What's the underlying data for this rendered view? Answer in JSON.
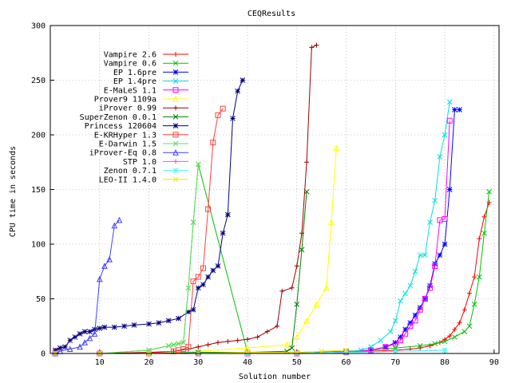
{
  "chart_data": {
    "type": "line",
    "title": "CEQResults",
    "xlabel": "Solution number",
    "ylabel": "CPU time in seconds",
    "xlim": [
      0,
      91
    ],
    "ylim": [
      0,
      300
    ],
    "xticks": [
      "10",
      "20",
      "30",
      "40",
      "50",
      "60",
      "70",
      "80",
      "90"
    ],
    "yticks": [
      "0",
      "50",
      "100",
      "150",
      "200",
      "250",
      "300"
    ],
    "grid": true,
    "legend_position": "top-left",
    "series": [
      {
        "name": "Vampire 2.6",
        "color": "#ff0000",
        "marker": "plus",
        "x": [
          1,
          10,
          20,
          30,
          40,
          50,
          60,
          65,
          70,
          73,
          75,
          77,
          79,
          80,
          81,
          82,
          83,
          84,
          85,
          86,
          87,
          88,
          89
        ],
        "y": [
          0,
          0,
          0,
          0,
          0,
          0,
          1,
          2,
          3,
          4,
          5,
          7,
          10,
          13,
          16,
          22,
          28,
          40,
          55,
          70,
          105,
          125,
          138
        ]
      },
      {
        "name": "Vampire 0.6",
        "color": "#00c000",
        "marker": "x",
        "x": [
          1,
          10,
          20,
          24,
          25,
          26,
          27,
          28,
          29,
          30,
          40,
          50,
          60,
          65,
          70,
          75,
          78,
          80,
          82,
          84,
          85,
          86,
          87,
          88,
          89
        ],
        "y": [
          0,
          0,
          3,
          7,
          8,
          9,
          10,
          60,
          120,
          173,
          1,
          1,
          2,
          3,
          5,
          7,
          9,
          11,
          15,
          20,
          25,
          45,
          70,
          110,
          148
        ]
      },
      {
        "name": "EP 1.6pre",
        "color": "#0000ff",
        "marker": "asterisk",
        "x": [
          1,
          10,
          20,
          30,
          40,
          50,
          60,
          65,
          68,
          70,
          71,
          72,
          73,
          74,
          75,
          76,
          77,
          78,
          79,
          80,
          81,
          82,
          83
        ],
        "y": [
          0,
          0,
          0,
          0,
          0,
          0,
          1,
          3,
          6,
          10,
          15,
          22,
          28,
          35,
          42,
          50,
          62,
          82,
          90,
          100,
          150,
          223,
          223
        ]
      },
      {
        "name": "EP 1.4pre",
        "color": "#00e0e0",
        "marker": "x",
        "x": [
          1,
          10,
          20,
          30,
          40,
          50,
          60,
          63,
          65,
          67,
          69,
          70,
          71,
          72,
          73,
          74,
          75,
          76,
          77,
          78,
          79,
          80,
          81
        ],
        "y": [
          0,
          0,
          0,
          0,
          0,
          0,
          1,
          3,
          6,
          12,
          20,
          30,
          48,
          55,
          62,
          75,
          90,
          90,
          120,
          140,
          180,
          200,
          230
        ]
      },
      {
        "name": "E-MaLeS 1.1",
        "color": "#ff00ff",
        "marker": "square",
        "x": [
          1,
          10,
          20,
          30,
          40,
          50,
          60,
          65,
          68,
          70,
          71,
          72,
          73,
          74,
          75,
          76,
          77,
          78,
          79,
          80,
          81
        ],
        "y": [
          0,
          0,
          0,
          0,
          0,
          0,
          1,
          3,
          6,
          9,
          12,
          18,
          25,
          30,
          40,
          50,
          60,
          80,
          122,
          123,
          213
        ]
      },
      {
        "name": "Prover9 1109a",
        "color": "#ffff00",
        "marker": "triangle",
        "x": [
          1,
          10,
          20,
          30,
          40,
          48,
          50,
          52,
          54,
          56,
          57,
          58
        ],
        "y": [
          0,
          0,
          1,
          2,
          5,
          8,
          15,
          30,
          45,
          60,
          120,
          188
        ]
      },
      {
        "name": "iProver 0.99",
        "color": "#a00000",
        "marker": "plus",
        "x": [
          1,
          10,
          20,
          25,
          28,
          30,
          32,
          34,
          36,
          38,
          40,
          42,
          44,
          46,
          47,
          49,
          50,
          51,
          52,
          53,
          54
        ],
        "y": [
          0,
          0,
          1,
          2,
          4,
          6,
          8,
          10,
          11,
          12,
          13,
          15,
          20,
          25,
          57,
          60,
          80,
          110,
          175,
          280,
          282
        ]
      },
      {
        "name": "SuperZenon 0.0.1",
        "color": "#008000",
        "marker": "x",
        "x": [
          1,
          10,
          20,
          30,
          40,
          48,
          49,
          50,
          51,
          52
        ],
        "y": [
          0,
          0,
          0,
          1,
          1,
          2,
          5,
          45,
          95,
          148
        ]
      },
      {
        "name": "Princess 120604",
        "color": "#000080",
        "marker": "asterisk",
        "x": [
          1,
          2,
          3,
          4,
          5,
          6,
          7,
          8,
          9,
          10,
          11,
          13,
          15,
          17,
          20,
          22,
          24,
          26,
          28,
          29,
          30,
          31,
          32,
          33,
          34,
          35,
          36,
          37,
          38,
          39
        ],
        "y": [
          3,
          5,
          6,
          12,
          15,
          18,
          20,
          20,
          22,
          23,
          24,
          24,
          25,
          26,
          27,
          28,
          30,
          32,
          38,
          40,
          60,
          63,
          70,
          76,
          80,
          110,
          127,
          215,
          240,
          250
        ]
      },
      {
        "name": "E-KRHyper 1.3",
        "color": "#ff4040",
        "marker": "square",
        "x": [
          1,
          10,
          20,
          25,
          26,
          27,
          28,
          29,
          30,
          31,
          32,
          33,
          34,
          35
        ],
        "y": [
          0,
          0,
          0,
          2,
          3,
          4,
          6,
          66,
          70,
          78,
          132,
          193,
          218,
          224
        ]
      },
      {
        "name": "E-Darwin 1.5",
        "color": "#60e060",
        "marker": "x",
        "x": [
          1,
          10,
          20,
          24,
          25,
          26,
          27,
          28,
          29,
          30
        ],
        "y": [
          0,
          0,
          3,
          7,
          8,
          9,
          10,
          60,
          120,
          173
        ]
      },
      {
        "name": "iProver-Eq 0.8",
        "color": "#4040ff",
        "marker": "triangle",
        "x": [
          1,
          2,
          4,
          6,
          7,
          8,
          9,
          10,
          11,
          12,
          13,
          14
        ],
        "y": [
          0,
          2,
          4,
          6,
          10,
          14,
          18,
          68,
          80,
          86,
          117,
          122
        ]
      },
      {
        "name": "STP 1.0",
        "color": "#ff40ff",
        "marker": "plus",
        "x": [
          1,
          10,
          20,
          30,
          40,
          50,
          60,
          70,
          80
        ],
        "y": [
          0,
          0,
          0,
          0,
          0,
          0,
          1,
          2,
          3
        ]
      },
      {
        "name": "Zenon 0.7.1",
        "color": "#40ffff",
        "marker": "asterisk",
        "x": [
          1,
          10,
          20,
          30,
          40,
          50,
          60,
          70,
          80
        ],
        "y": [
          0,
          0,
          0,
          0,
          0,
          0,
          1,
          2,
          3
        ]
      },
      {
        "name": "LEO-II 1.4.0",
        "color": "#ffe000",
        "marker": "x",
        "x": [
          1,
          10,
          20,
          30,
          40,
          50,
          55,
          60
        ],
        "y": [
          0,
          0,
          0,
          0,
          1,
          1,
          2,
          3
        ]
      }
    ]
  }
}
